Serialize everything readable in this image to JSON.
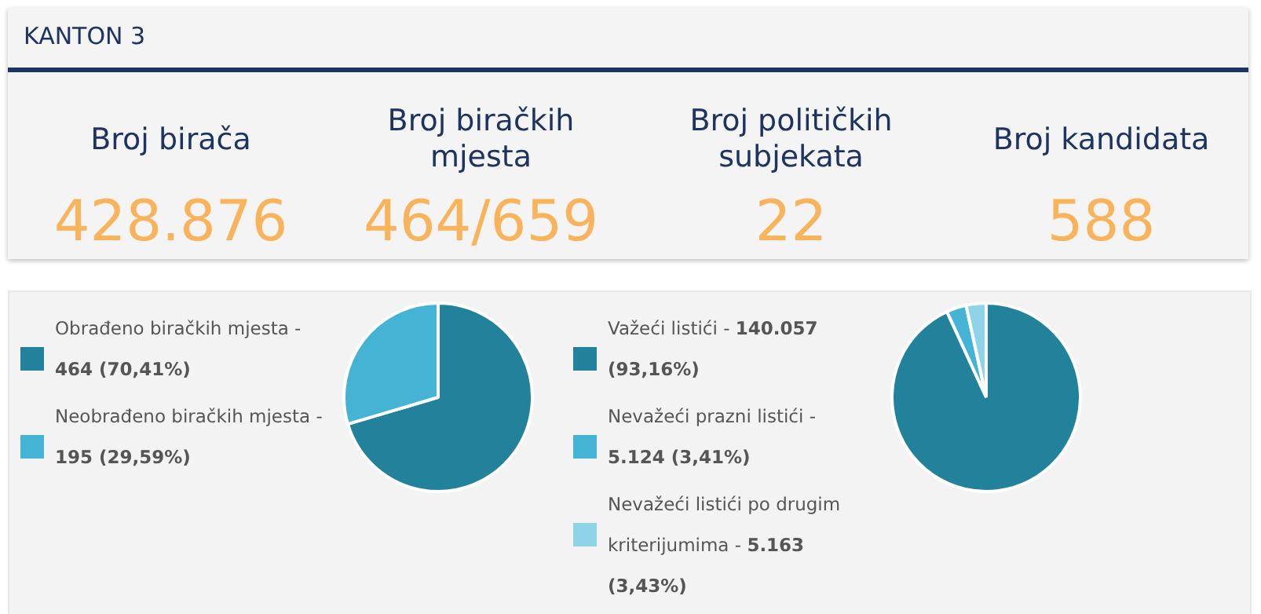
{
  "chart_data": [
    {
      "type": "other",
      "title": "KANTON 3",
      "categories": [
        "Broj birača",
        "Broj biračkih mjesta",
        "Broj političkih subjekata",
        "Broj kandidata"
      ],
      "value_labels": [
        "428.876",
        "464/659",
        "22",
        "588"
      ]
    },
    {
      "type": "pie",
      "categories": [
        "Obrađeno biračkih mjesta - 464 (70,41%)",
        "Neobrađeno biračkih mjesta - 195 (29,59%)"
      ],
      "values": [
        70.41,
        29.59
      ],
      "colors": [
        "#22819b",
        "#45b3d3"
      ],
      "legend": "left"
    },
    {
      "type": "pie",
      "categories": [
        "Važeći listići - 140.057 (93,16%)",
        "Nevažeći prazni listići - 5.124 (3,41%)",
        "Nevažeći listići po drugim kriterijumima - 5.163 (3,43%)"
      ],
      "values": [
        93.16,
        3.41,
        3.43
      ],
      "colors": [
        "#22819b",
        "#45b3d3",
        "#8ed3e8"
      ],
      "legend": "left"
    }
  ]
}
